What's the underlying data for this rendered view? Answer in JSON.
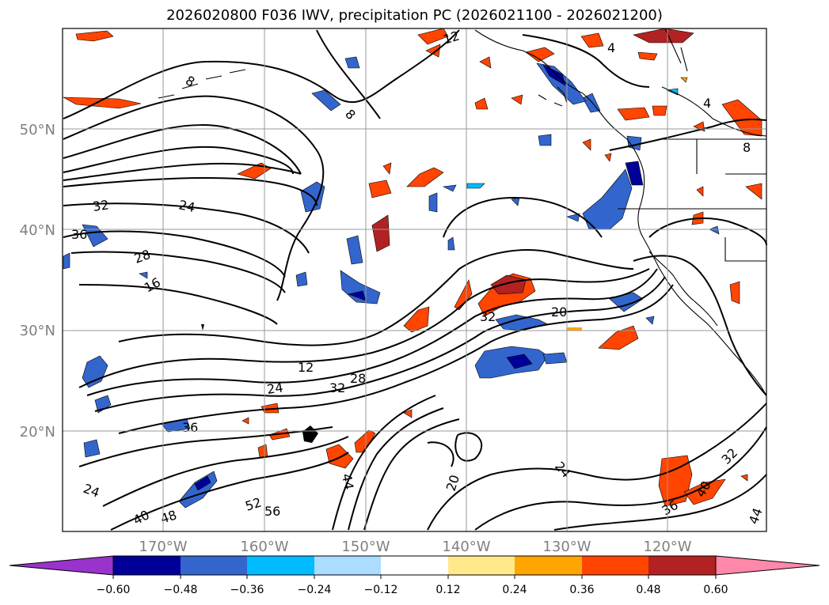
{
  "title": "2026020800 F036 IWV, precipitation PC (2026021100 - 2026021200)",
  "map": {
    "lat_labels": [
      "50°N",
      "40°N",
      "30°N",
      "20°N"
    ],
    "lon_labels": [
      "170°W",
      "160°W",
      "150°W",
      "140°W",
      "130°W",
      "120°W"
    ],
    "contour_labels": [
      "12",
      "4",
      "8",
      "8",
      "4",
      "8",
      "32",
      "24",
      "36",
      "28",
      "16",
      "32",
      "20",
      "12",
      "24",
      "32",
      "28",
      "36",
      "24",
      "20",
      "24",
      "44",
      "52",
      "56",
      "48",
      "40",
      "36",
      "40",
      "44",
      "32"
    ]
  },
  "colorbar": {
    "tick_labels": [
      "−0.60",
      "−0.48",
      "−0.36",
      "−0.24",
      "−0.12",
      "0.12",
      "0.24",
      "0.36",
      "0.48",
      "0.60"
    ],
    "colors": [
      "#9933cc",
      "#000099",
      "#3366cc",
      "#00bbff",
      "#aaddff",
      "#ffffff",
      "#ffe98a",
      "#ffa500",
      "#ff4500",
      "#b22222",
      "#ff88aa"
    ]
  }
}
